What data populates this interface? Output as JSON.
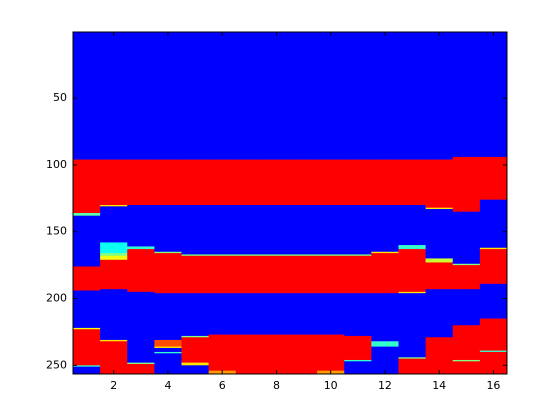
{
  "chart_data": {
    "type": "heatmap",
    "colormap": "jet",
    "xlim": [
      0.5,
      16.5
    ],
    "ylim": [
      0.5,
      256.5
    ],
    "y_reversed": true,
    "xticks": [
      2,
      4,
      6,
      8,
      10,
      12,
      14,
      16
    ],
    "yticks": [
      50,
      100,
      150,
      200,
      250
    ],
    "columns": [
      [
        [
          0.5,
          96,
          0
        ],
        [
          96,
          136,
          1
        ],
        [
          136,
          138,
          0.45
        ],
        [
          138,
          176,
          0
        ],
        [
          176,
          194,
          1
        ],
        [
          194,
          222,
          0
        ],
        [
          222,
          223,
          0.65
        ],
        [
          223,
          250,
          1
        ],
        [
          250,
          251,
          0.4
        ],
        [
          251,
          256.5,
          0
        ]
      ],
      [
        [
          0.5,
          96,
          0
        ],
        [
          96,
          130,
          1
        ],
        [
          130,
          131,
          0.7
        ],
        [
          131,
          158,
          0
        ],
        [
          158,
          166,
          0.35
        ],
        [
          166,
          168,
          0.5
        ],
        [
          168,
          171,
          0.65
        ],
        [
          171,
          193,
          1
        ],
        [
          193,
          231,
          0
        ],
        [
          231,
          232,
          0.7
        ],
        [
          232,
          256.5,
          1
        ]
      ],
      [
        [
          0.5,
          96,
          0
        ],
        [
          96,
          130,
          1
        ],
        [
          130,
          161,
          0
        ],
        [
          161,
          163,
          0.4
        ],
        [
          163,
          195,
          1
        ],
        [
          195,
          248,
          0
        ],
        [
          248,
          249,
          0.5
        ],
        [
          249,
          256.5,
          1
        ]
      ],
      [
        [
          0.5,
          96,
          0
        ],
        [
          96,
          130,
          1
        ],
        [
          130,
          165,
          0
        ],
        [
          165,
          166,
          0.5
        ],
        [
          166,
          196,
          1
        ],
        [
          196,
          231,
          0
        ],
        [
          231,
          236,
          0.9
        ],
        [
          236,
          237,
          0.7
        ],
        [
          237,
          240,
          0
        ],
        [
          240,
          241,
          0.4
        ],
        [
          241,
          256.5,
          0
        ]
      ],
      [
        [
          0.5,
          96,
          0
        ],
        [
          96,
          130,
          1
        ],
        [
          130,
          167,
          0
        ],
        [
          167,
          168,
          0.5
        ],
        [
          168,
          196,
          1
        ],
        [
          196,
          228,
          0
        ],
        [
          228,
          229,
          0.5
        ],
        [
          229,
          248,
          1
        ],
        [
          248,
          250,
          0.7
        ],
        [
          250,
          256.5,
          0
        ]
      ],
      [
        [
          0.5,
          96,
          0
        ],
        [
          96,
          130,
          1
        ],
        [
          130,
          167,
          0
        ],
        [
          167,
          168,
          0.5
        ],
        [
          168,
          196,
          1
        ],
        [
          196,
          227,
          0
        ],
        [
          227,
          254,
          1
        ],
        [
          254,
          256.5,
          0.8
        ]
      ],
      [
        [
          0.5,
          96,
          0
        ],
        [
          96,
          130,
          1
        ],
        [
          130,
          167,
          0
        ],
        [
          167,
          168,
          0.5
        ],
        [
          168,
          196,
          1
        ],
        [
          196,
          227,
          0
        ],
        [
          227,
          256.5,
          1
        ]
      ],
      [
        [
          0.5,
          96,
          0
        ],
        [
          96,
          130,
          1
        ],
        [
          130,
          167,
          0
        ],
        [
          167,
          168,
          0.5
        ],
        [
          168,
          196,
          1
        ],
        [
          196,
          227,
          0
        ],
        [
          227,
          256.5,
          1
        ]
      ],
      [
        [
          0.5,
          96,
          0
        ],
        [
          96,
          130,
          1
        ],
        [
          130,
          167,
          0
        ],
        [
          167,
          168,
          0.5
        ],
        [
          168,
          196,
          1
        ],
        [
          196,
          227,
          0
        ],
        [
          227,
          256.5,
          1
        ]
      ],
      [
        [
          0.5,
          96,
          0
        ],
        [
          96,
          130,
          1
        ],
        [
          130,
          167,
          0
        ],
        [
          167,
          168,
          0.5
        ],
        [
          168,
          196,
          1
        ],
        [
          196,
          227,
          0
        ],
        [
          227,
          254,
          1
        ],
        [
          254,
          256.5,
          0.8
        ]
      ],
      [
        [
          0.5,
          96,
          0
        ],
        [
          96,
          130,
          1
        ],
        [
          130,
          167,
          0
        ],
        [
          167,
          168,
          0.5
        ],
        [
          168,
          196,
          1
        ],
        [
          196,
          228,
          0
        ],
        [
          228,
          246,
          1
        ],
        [
          246,
          247,
          0.4
        ],
        [
          247,
          256.5,
          0
        ]
      ],
      [
        [
          0.5,
          96,
          0
        ],
        [
          96,
          130,
          1
        ],
        [
          130,
          165,
          0
        ],
        [
          165,
          166,
          0.7
        ],
        [
          166,
          196,
          1
        ],
        [
          196,
          232,
          0
        ],
        [
          232,
          236,
          0.4
        ],
        [
          236,
          256.5,
          0
        ]
      ],
      [
        [
          0.5,
          96,
          0
        ],
        [
          96,
          130,
          1
        ],
        [
          130,
          160,
          0
        ],
        [
          160,
          163,
          0.4
        ],
        [
          163,
          195,
          1
        ],
        [
          195,
          196,
          0.7
        ],
        [
          196,
          244,
          0
        ],
        [
          244,
          245,
          0.5
        ],
        [
          245,
          256.5,
          1
        ]
      ],
      [
        [
          0.5,
          96,
          0
        ],
        [
          96,
          132,
          1
        ],
        [
          132,
          133,
          0.7
        ],
        [
          133,
          170,
          0
        ],
        [
          170,
          173,
          0.6
        ],
        [
          173,
          193,
          1
        ],
        [
          193,
          229,
          0
        ],
        [
          229,
          256.5,
          1
        ]
      ],
      [
        [
          0.5,
          94,
          0
        ],
        [
          94,
          135,
          1
        ],
        [
          135,
          174,
          0
        ],
        [
          174,
          175,
          0.5
        ],
        [
          175,
          193,
          1
        ],
        [
          193,
          220,
          0
        ],
        [
          220,
          246,
          1
        ],
        [
          246,
          247,
          0.5
        ],
        [
          247,
          256.5,
          1
        ]
      ],
      [
        [
          0.5,
          94,
          0
        ],
        [
          94,
          126,
          1
        ],
        [
          126,
          162,
          0
        ],
        [
          162,
          163,
          0.7
        ],
        [
          163,
          189,
          1
        ],
        [
          189,
          215,
          0
        ],
        [
          215,
          239,
          1
        ],
        [
          239,
          240,
          0.4
        ],
        [
          240,
          256.5,
          1
        ]
      ]
    ]
  }
}
